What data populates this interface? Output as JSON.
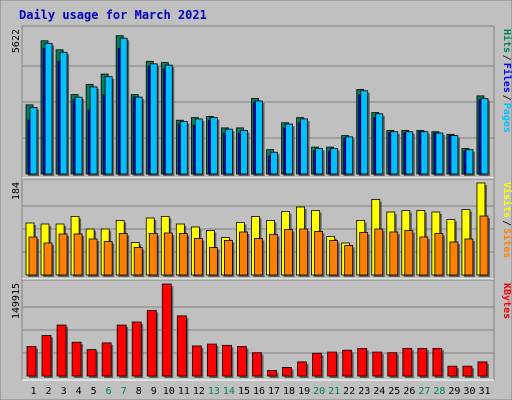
{
  "chart_data": {
    "type": "bar",
    "title": "Daily usage for March 2021",
    "categories": [
      "1",
      "2",
      "3",
      "4",
      "5",
      "6",
      "7",
      "8",
      "9",
      "10",
      "11",
      "12",
      "13",
      "14",
      "15",
      "16",
      "17",
      "18",
      "19",
      "20",
      "21",
      "22",
      "23",
      "24",
      "25",
      "26",
      "27",
      "28",
      "29",
      "30",
      "31"
    ],
    "weekend_days": [
      "6",
      "7",
      "13",
      "14",
      "20",
      "21",
      "27",
      "28"
    ],
    "grid": true,
    "legend": "right",
    "panels": [
      {
        "id": "hits-files-pages",
        "ymax": 5622,
        "ymax_label": "5622",
        "legend": [
          {
            "label": "Hits",
            "color": "#00805c"
          },
          {
            "label": "Files",
            "color": "#0000ff"
          },
          {
            "label": "Pages",
            "color": "#00c0ff"
          }
        ],
        "series": [
          {
            "name": "Hits",
            "color": "#00805c",
            "values": [
              2700,
              5200,
              4850,
              3100,
              3500,
              3900,
              5400,
              3100,
              4400,
              4350,
              2100,
              2200,
              2250,
              1800,
              1800,
              2950,
              950,
              2000,
              2200,
              1050,
              1050,
              1500,
              3300,
              2400,
              1700,
              1700,
              1700,
              1650,
              1550,
              1000,
              3050
            ]
          },
          {
            "name": "Files",
            "color": "#0000ff",
            "values": [
              2100,
              4900,
              4400,
              2900,
              2500,
              3100,
              4900,
              3000,
              4200,
              4100,
              1950,
              1900,
              2100,
              1600,
              1600,
              2800,
              700,
              1800,
              2000,
              900,
              900,
              1400,
              3100,
              2200,
              1600,
              1600,
              1650,
              1600,
              1500,
              900,
              2900
            ]
          },
          {
            "name": "Pages",
            "color": "#00c0ff",
            "values": [
              2600,
              5100,
              4750,
              3000,
              3400,
              3800,
              5300,
              3000,
              4300,
              4250,
              2050,
              2150,
              2200,
              1750,
              1700,
              2850,
              850,
              1950,
              2150,
              1000,
              1000,
              1450,
              3250,
              2350,
              1650,
              1650,
              1650,
              1600,
              1500,
              950,
              2950
            ]
          }
        ]
      },
      {
        "id": "visits-sites",
        "ymax": 184,
        "ymax_label": "184",
        "legend": [
          {
            "label": "Visits",
            "color": "#ffff00"
          },
          {
            "label": "Sites",
            "color": "#ff8000"
          }
        ],
        "series": [
          {
            "name": "Visits",
            "color": "#ffff00",
            "values": [
              104,
              102,
              102,
              117,
              92,
              92,
              109,
              65,
              114,
              117,
              102,
              96,
              89,
              75,
              105,
              117,
              109,
              127,
              136,
              129,
              77,
              64,
              109,
              151,
              126,
              129,
              129,
              126,
              111,
              131,
              184
            ]
          },
          {
            "name": "Sites",
            "color": "#ff8000",
            "values": [
              76,
              64,
              82,
              82,
              72,
              67,
              83,
              55,
              83,
              84,
              83,
              73,
              55,
              69,
              86,
              73,
              81,
              91,
              92,
              87,
              69,
              59,
              85,
              92,
              86,
              89,
              76,
              83,
              66,
              72,
              118
            ]
          }
        ]
      },
      {
        "id": "kbytes",
        "ymax": 149915,
        "ymax_label": "149915",
        "legend": [
          {
            "label": "KBytes",
            "color": "#ff0000"
          }
        ],
        "series": [
          {
            "name": "KBytes",
            "color": "#ff0000",
            "values": [
              48000,
              66000,
              83000,
              55000,
              43000,
              54000,
              83000,
              88000,
              107000,
              149915,
              98000,
              49000,
              52000,
              50000,
              48000,
              38000,
              9000,
              14000,
              23000,
              37000,
              39000,
              42000,
              45000,
              39000,
              38000,
              45000,
              45000,
              45000,
              16000,
              16000,
              23000
            ]
          }
        ]
      }
    ]
  }
}
